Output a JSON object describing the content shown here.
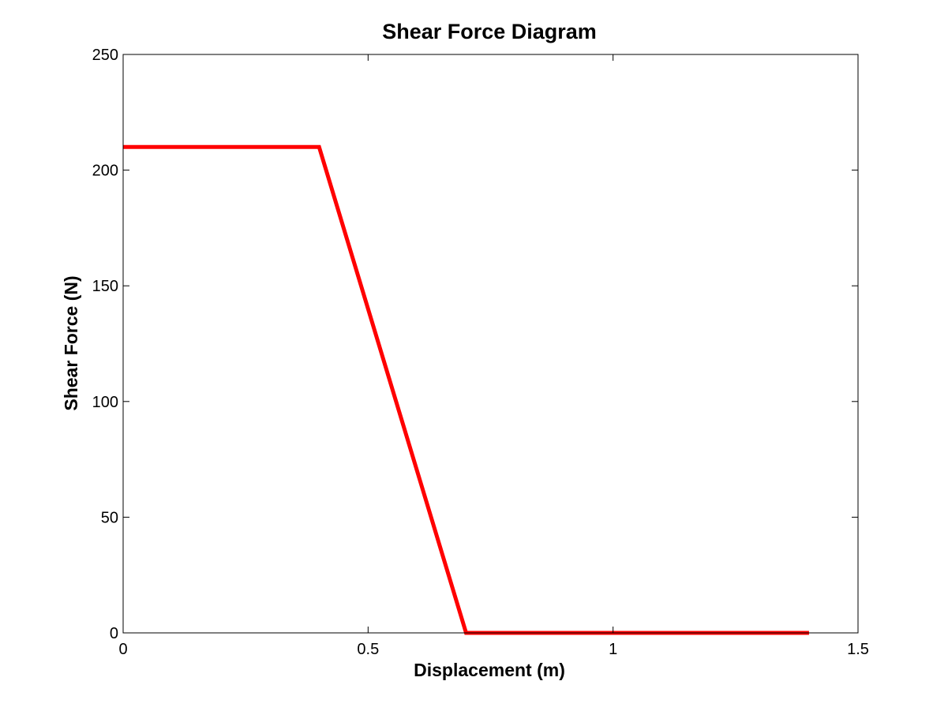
{
  "chart_data": {
    "type": "line",
    "title": "Shear Force Diagram",
    "xlabel": "Displacement (m)",
    "ylabel": "Shear Force (N)",
    "xlim": [
      0,
      1.5
    ],
    "ylim": [
      0,
      250
    ],
    "x_ticks": [
      0,
      0.5,
      1,
      1.5
    ],
    "x_tick_labels": [
      "0",
      "0.5",
      "1",
      "1.5"
    ],
    "y_ticks": [
      0,
      50,
      100,
      150,
      200,
      250
    ],
    "y_tick_labels": [
      "0",
      "50",
      "100",
      "150",
      "200",
      "250"
    ],
    "grid": false,
    "legend": "none",
    "series": [
      {
        "color": "#ff0000",
        "x": [
          0,
          0.4,
          0.7,
          1.4
        ],
        "y": [
          210,
          210,
          0,
          0
        ]
      }
    ]
  }
}
